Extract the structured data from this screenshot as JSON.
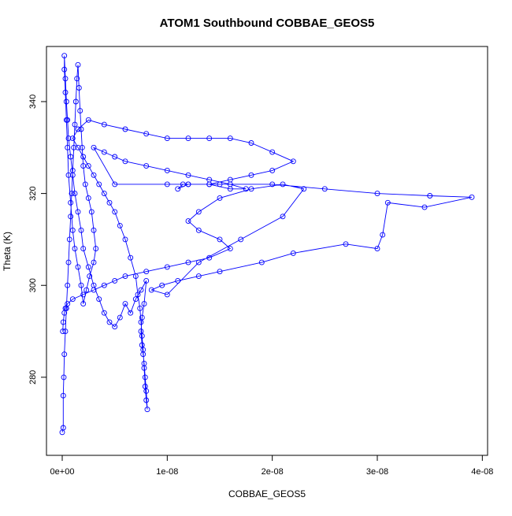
{
  "chart_data": {
    "type": "line",
    "title": "ATOM1 Southbound COBBAE_GEOS5",
    "xlabel": "COBBAE_GEOS5",
    "ylabel": "Theta (K)",
    "xlim": [
      -1.5e-09,
      4.05e-08
    ],
    "ylim": [
      263,
      352
    ],
    "x_ticks": [
      0,
      1e-08,
      2e-08,
      3e-08,
      4e-08
    ],
    "x_tick_labels": [
      "0e+00",
      "1e-08",
      "2e-08",
      "3e-08",
      "4e-08"
    ],
    "y_ticks": [
      280,
      300,
      320,
      340
    ],
    "y_tick_labels": [
      "280",
      "300",
      "320",
      "340"
    ],
    "grid": false,
    "series": [
      {
        "color": "#0000ff",
        "marker": "open-circle",
        "x": [
          0.0,
          1e-10,
          1e-10,
          1.5e-10,
          2e-10,
          3e-10,
          4e-10,
          5e-10,
          6e-10,
          7e-10,
          8e-10,
          9e-10,
          1e-09,
          1.1e-09,
          1.2e-09,
          1.3e-09,
          1.4e-09,
          1.5e-09,
          1.6e-09,
          1.7e-09,
          1.8e-09,
          1.9e-09,
          2e-09,
          2.2e-09,
          2.5e-09,
          2.8e-09,
          3e-09,
          3.2e-09,
          3e-09,
          2.6e-09,
          2.3e-09,
          2e-09,
          1.8e-09,
          1.5e-09,
          1.2e-09,
          1e-09,
          8e-10,
          6e-10,
          5e-10,
          4e-10,
          3e-10,
          2e-10,
          2e-10,
          3e-10,
          4e-10,
          5e-10,
          6e-10,
          8e-10,
          1e-09,
          1.2e-09,
          1.5e-09,
          1.8e-09,
          2e-09,
          2.5e-09,
          3e-09,
          3.5e-09,
          4e-09,
          4.5e-09,
          5e-09,
          5.5e-09,
          6e-09,
          6.5e-09,
          7e-09,
          7.5e-09,
          8e-09,
          7.8e-09,
          7.6e-09,
          7.5e-09,
          7.6e-09,
          7.7e-09,
          7.8e-09,
          7.9e-09,
          8e-09,
          8.1e-09,
          8e-09,
          7.9e-09,
          7.8e-09,
          7.7e-09,
          7.6e-09,
          7.5e-09,
          7.4e-09,
          7.2e-09,
          7e-09,
          6.5e-09,
          6e-09,
          5.5e-09,
          5e-09,
          4.5e-09,
          4e-09,
          3.5e-09,
          3e-09,
          2.5e-09,
          2e-09,
          1.5e-09,
          1e-09,
          1.5e-09,
          2.5e-09,
          4e-09,
          6e-09,
          8e-09,
          1e-08,
          1.2e-08,
          1.4e-08,
          1.6e-08,
          1.8e-08,
          2e-08,
          2.2e-08,
          2e-08,
          1.8e-08,
          1.6e-08,
          1.4e-08,
          1.2e-08,
          1.1e-08,
          1.15e-08,
          1.2e-08,
          1.4e-08,
          1.6e-08,
          1.75e-08,
          1.6e-08,
          1.4e-08,
          1.2e-08,
          1e-08,
          8e-09,
          6e-09,
          5e-09,
          4e-09,
          3e-09,
          5e-09,
          1e-08,
          1.5e-08,
          2e-08,
          2.5e-08,
          3e-08,
          3.5e-08,
          3.9e-08,
          3.45e-08,
          3.1e-08,
          3.05e-08,
          3e-08,
          2.7e-08,
          2.2e-08,
          1.9e-08,
          1.5e-08,
          1.3e-08,
          1.1e-08,
          9.5e-09,
          8.5e-09,
          1e-08,
          1.3e-08,
          1.7e-08,
          2.1e-08,
          2.3e-08,
          2.1e-08,
          1.8e-08,
          1.5e-08,
          1.3e-08,
          1.2e-08,
          1.3e-08,
          1.5e-08,
          1.6e-08,
          1.4e-08,
          1.2e-08,
          1e-08,
          8e-09,
          6e-09,
          5e-09,
          4e-09,
          3e-09,
          2e-09,
          1e-09,
          5e-10,
          3e-10,
          2e-10,
          1e-10,
          5e-11
        ],
        "y": [
          268.0,
          269.0,
          276.0,
          280.0,
          285.0,
          290.0,
          295.0,
          300.0,
          305.0,
          310.0,
          315.0,
          320.0,
          325.0,
          330.0,
          335.0,
          340.0,
          345.0,
          348.0,
          343.0,
          338.0,
          334.0,
          330.0,
          326.0,
          322.0,
          319.0,
          316.0,
          312.0,
          308.0,
          305.0,
          302.0,
          299.0,
          296.0,
          300.0,
          304.0,
          308.0,
          312.0,
          318.0,
          324.0,
          330.0,
          336.0,
          342.0,
          347.0,
          350.0,
          345.0,
          340.0,
          336.0,
          332.0,
          328.0,
          324.0,
          320.0,
          316.0,
          312.0,
          308.0,
          304.0,
          300.0,
          297.0,
          294.0,
          292.0,
          291.0,
          293.0,
          296.0,
          294.0,
          297.0,
          299.0,
          301.0,
          296.0,
          293.0,
          290.0,
          287.0,
          285.0,
          283.0,
          280.0,
          277.0,
          273.0,
          275.0,
          278.0,
          282.0,
          286.0,
          289.0,
          292.0,
          295.0,
          298.0,
          302.0,
          306.0,
          310.0,
          313.0,
          316.0,
          318.0,
          320.0,
          322.0,
          324.0,
          326.0,
          328.0,
          330.0,
          332.0,
          334.0,
          336.0,
          335.0,
          334.0,
          333.0,
          332.0,
          332.0,
          332.0,
          332.0,
          331.0,
          329.0,
          327.0,
          325.0,
          324.0,
          323.0,
          322.0,
          322.0,
          321.0,
          322.0,
          322.0,
          322.0,
          321.0,
          321.0,
          322.0,
          323.0,
          324.0,
          325.0,
          326.0,
          327.0,
          328.0,
          329.0,
          330.0,
          322.0,
          322.0,
          322.0,
          322.0,
          321.0,
          320.0,
          319.5,
          319.2,
          317.0,
          318.0,
          311.0,
          308.0,
          309.0,
          307.0,
          305.0,
          303.0,
          302.0,
          301.0,
          300.0,
          299.0,
          298.0,
          305.0,
          310.0,
          315.0,
          321.0,
          322.0,
          321.0,
          319.0,
          316.0,
          314.0,
          312.0,
          310.0,
          308.0,
          306.0,
          305.0,
          304.0,
          303.0,
          302.0,
          301.0,
          300.0,
          299.0,
          298.0,
          297.0,
          296.0,
          295.0,
          294.0,
          292.0,
          290.0
        ]
      }
    ]
  }
}
